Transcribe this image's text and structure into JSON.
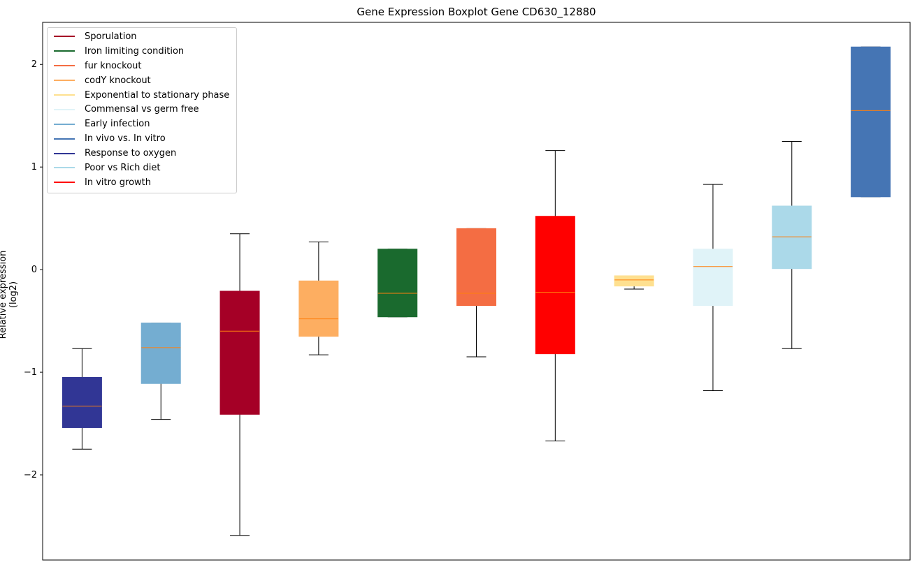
{
  "chart_data": {
    "type": "boxplot",
    "title": "Gene Expression Boxplot Gene CD630_12880",
    "xlabel": "",
    "ylabel": "Relative expression (log2)",
    "ylim": [
      -2.83,
      2.41
    ],
    "yticks": [
      -2,
      -1,
      0,
      1,
      2
    ],
    "ytick_labels": [
      "−2",
      "−1",
      "0",
      "1",
      "2"
    ],
    "grid": false,
    "legend_position": "top-left",
    "median_color": "#ff7f0e",
    "legend": [
      {
        "name": "Sporulation",
        "color": "#a50026"
      },
      {
        "name": "Iron limiting condition",
        "color": "#1a6a2e"
      },
      {
        "name": "fur knockout",
        "color": "#f46d43"
      },
      {
        "name": "codY knockout",
        "color": "#fdae61"
      },
      {
        "name": "Exponential to stationary phase",
        "color": "#fee090"
      },
      {
        "name": "Commensal vs germ free",
        "color": "#e0f3f8"
      },
      {
        "name": "Early infection",
        "color": "#74add1"
      },
      {
        "name": "In vivo vs. In vitro",
        "color": "#4575b4"
      },
      {
        "name": "Response to oxygen",
        "color": "#313695"
      },
      {
        "name": "Poor vs Rich diet",
        "color": "#abd9e9"
      },
      {
        "name": "In vitro growth",
        "color": "#ff0000"
      }
    ],
    "boxes": [
      {
        "name": "Response to oxygen",
        "color": "#313695",
        "whisker_low": -1.75,
        "q1": -1.54,
        "median": -1.33,
        "q3": -1.05,
        "whisker_high": -0.77
      },
      {
        "name": "Early infection",
        "color": "#74add1",
        "whisker_low": -1.46,
        "q1": -1.11,
        "median": -0.76,
        "q3": -0.52,
        "whisker_high": -0.52
      },
      {
        "name": "Sporulation",
        "color": "#a50026",
        "whisker_low": -2.59,
        "q1": -1.41,
        "median": -0.6,
        "q3": -0.21,
        "whisker_high": 0.35
      },
      {
        "name": "codY knockout",
        "color": "#fdae61",
        "whisker_low": -0.83,
        "q1": -0.65,
        "median": -0.48,
        "q3": -0.11,
        "whisker_high": 0.27
      },
      {
        "name": "Iron limiting condition",
        "color": "#1a6a2e",
        "whisker_low": -0.46,
        "q1": -0.46,
        "median": -0.23,
        "q3": 0.2,
        "whisker_high": 0.2
      },
      {
        "name": "fur knockout",
        "color": "#f46d43",
        "whisker_low": -0.85,
        "q1": -0.35,
        "median": -0.23,
        "q3": 0.4,
        "whisker_high": 0.4
      },
      {
        "name": "In vitro growth",
        "color": "#ff0000",
        "whisker_low": -1.67,
        "q1": -0.82,
        "median": -0.22,
        "q3": 0.52,
        "whisker_high": 1.16
      },
      {
        "name": "Exponential to stationary phase",
        "color": "#fee090",
        "whisker_low": -0.19,
        "q1": -0.16,
        "median": -0.1,
        "q3": -0.06,
        "whisker_high": -0.06
      },
      {
        "name": "Commensal vs germ free",
        "color": "#e0f3f8",
        "whisker_low": -1.18,
        "q1": -0.35,
        "median": 0.03,
        "q3": 0.2,
        "whisker_high": 0.83
      },
      {
        "name": "Poor vs Rich diet",
        "color": "#abd9e9",
        "whisker_low": -0.77,
        "q1": 0.01,
        "median": 0.32,
        "q3": 0.62,
        "whisker_high": 1.25
      },
      {
        "name": "In vivo vs. In vitro",
        "color": "#4575b4",
        "whisker_low": 0.71,
        "q1": 0.71,
        "median": 1.55,
        "q3": 2.17,
        "whisker_high": 2.17
      }
    ]
  }
}
